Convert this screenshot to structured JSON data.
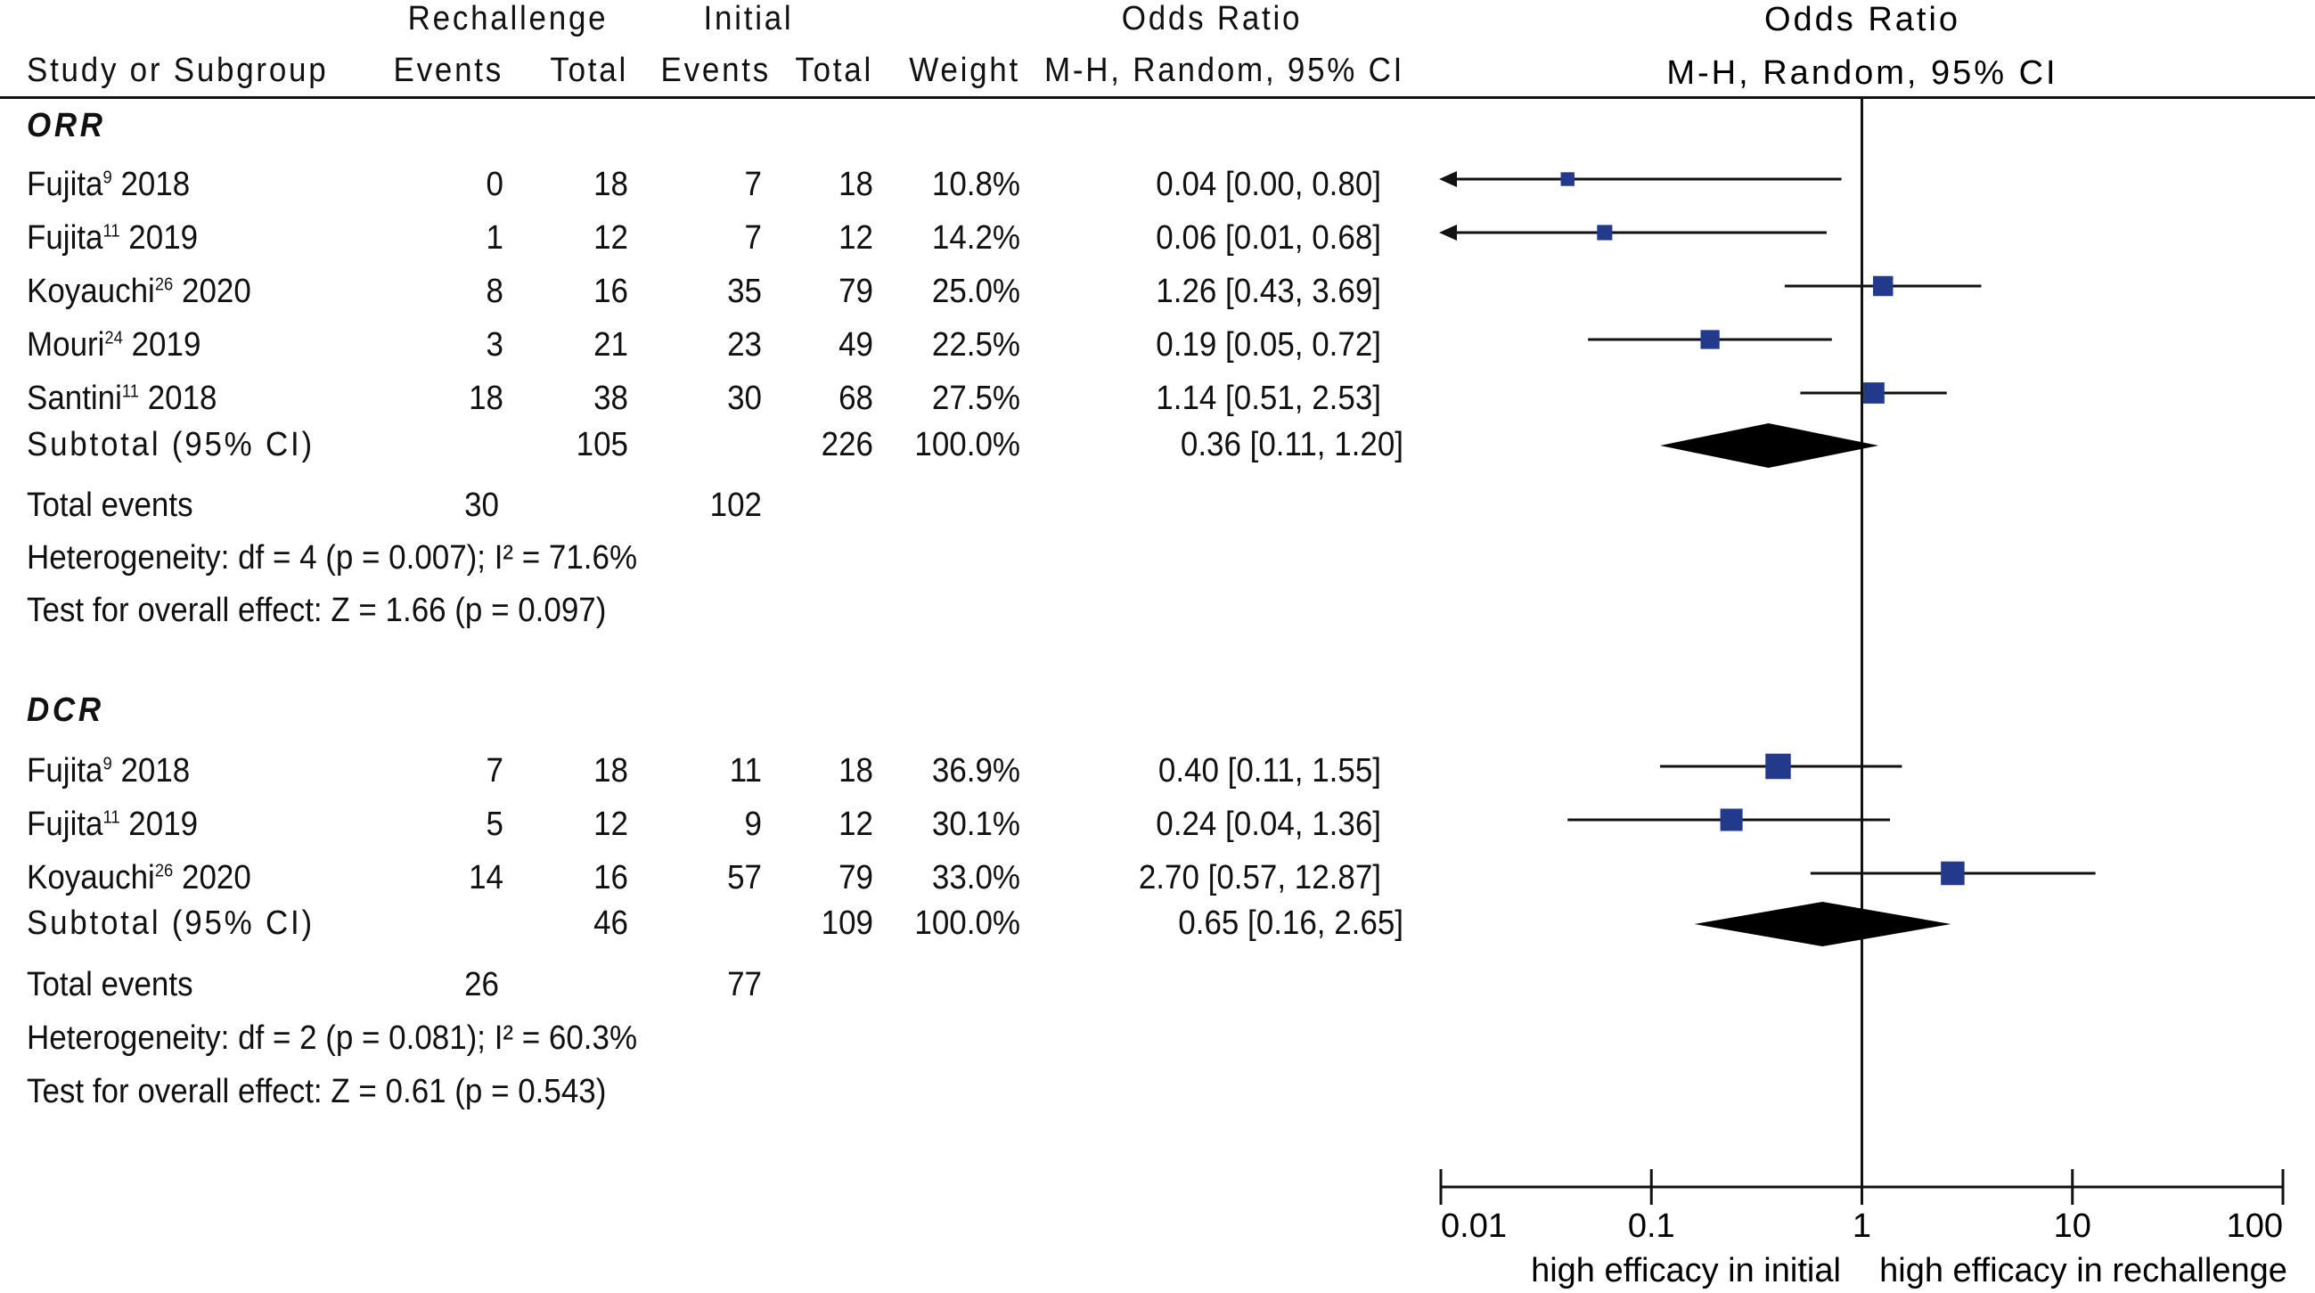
{
  "headers": {
    "rechallenge": "Rechallenge",
    "initial": "Initial",
    "odds_ratio_col": "Odds Ratio",
    "odds_ratio_col_method": "M-H, Random, 95% CI",
    "odds_ratio_plot": "Odds Ratio",
    "odds_ratio_plot_method": "M-H, Random, 95% CI",
    "study": "Study or Subgroup",
    "events1": "Events",
    "total1": "Total",
    "events2": "Events",
    "total2": "Total",
    "weight": "Weight"
  },
  "subgroups": [
    {
      "name": "ORR",
      "studies": [
        {
          "author": "Fujita",
          "ref": "9",
          "year": "2018",
          "e1": "0",
          "t1": "18",
          "e2": "7",
          "t2": "18",
          "weight": "10.8%",
          "ci_text": "0.04 [0.00, 0.80]"
        },
        {
          "author": "Fujita",
          "ref": "11",
          "year": "2019",
          "e1": "1",
          "t1": "12",
          "e2": "7",
          "t2": "12",
          "weight": "14.2%",
          "ci_text": "0.06 [0.01, 0.68]"
        },
        {
          "author": "Koyauchi",
          "ref": "26",
          "year": "2020",
          "e1": "8",
          "t1": "16",
          "e2": "35",
          "t2": "79",
          "weight": "25.0%",
          "ci_text": "1.26 [0.43, 3.69]"
        },
        {
          "author": "Mouri",
          "ref": "24",
          "year": "2019",
          "e1": "3",
          "t1": "21",
          "e2": "23",
          "t2": "49",
          "weight": "22.5%",
          "ci_text": "0.19 [0.05, 0.72]"
        },
        {
          "author": "Santini",
          "ref": "11",
          "year": "2018",
          "e1": "18",
          "t1": "38",
          "e2": "30",
          "t2": "68",
          "weight": "27.5%",
          "ci_text": "1.14 [0.51, 2.53]"
        }
      ],
      "subtotal": {
        "label": "Subtotal (95% CI)",
        "t1": "105",
        "t2": "226",
        "weight": "100.0%",
        "ci_text": "0.36 [0.11, 1.20]"
      },
      "total_events": {
        "label": "Total events",
        "e1": "30",
        "e2": "102"
      },
      "heterogeneity": "Heterogeneity: df = 4 (p = 0.007); I² = 71.6%",
      "overall": "Test for overall effect: Z = 1.66 (p = 0.097)"
    },
    {
      "name": "DCR",
      "studies": [
        {
          "author": "Fujita",
          "ref": "9",
          "year": "2018",
          "e1": "7",
          "t1": "18",
          "e2": "11",
          "t2": "18",
          "weight": "36.9%",
          "ci_text": "0.40 [0.11, 1.55]"
        },
        {
          "author": "Fujita",
          "ref": "11",
          "year": "2019",
          "e1": "5",
          "t1": "12",
          "e2": "9",
          "t2": "12",
          "weight": "30.1%",
          "ci_text": "0.24 [0.04, 1.36]"
        },
        {
          "author": "Koyauchi",
          "ref": "26",
          "year": "2020",
          "e1": "14",
          "t1": "16",
          "e2": "57",
          "t2": "79",
          "weight": "33.0%",
          "ci_text": "2.70 [0.57, 12.87]"
        }
      ],
      "subtotal": {
        "label": "Subtotal (95% CI)",
        "t1": "46",
        "t2": "109",
        "weight": "100.0%",
        "ci_text": "0.65 [0.16, 2.65]"
      },
      "total_events": {
        "label": "Total events",
        "e1": "26",
        "e2": "77"
      },
      "heterogeneity": "Heterogeneity:  df = 2 (p = 0.081); I² = 60.3%",
      "overall": "Test for overall effect: Z = 0.61 (p = 0.543)"
    }
  ],
  "chart_data": {
    "type": "forest",
    "scale": "log",
    "xlim": [
      0.01,
      100
    ],
    "ticks": [
      0.01,
      0.1,
      1,
      10,
      100
    ],
    "tick_labels": [
      "0.01",
      "0.1",
      "1",
      "10",
      "100"
    ],
    "reference_line": 1,
    "left_label": "high efficacy in initial",
    "right_label": "high efficacy in rechallenge",
    "colors": {
      "marker": "#233a8c",
      "line": "#111111",
      "diamond": "#000000"
    },
    "groups": [
      {
        "name": "ORR",
        "studies": [
          {
            "or": 0.04,
            "lo": 0.001,
            "hi": 0.8,
            "weight": 10.8,
            "lo_arrow": true
          },
          {
            "or": 0.06,
            "lo": 0.01,
            "hi": 0.68,
            "weight": 14.2,
            "lo_arrow": true
          },
          {
            "or": 1.26,
            "lo": 0.43,
            "hi": 3.69,
            "weight": 25.0,
            "lo_arrow": false
          },
          {
            "or": 0.19,
            "lo": 0.05,
            "hi": 0.72,
            "weight": 22.5,
            "lo_arrow": false
          },
          {
            "or": 1.14,
            "lo": 0.51,
            "hi": 2.53,
            "weight": 27.5,
            "lo_arrow": false
          }
        ],
        "pooled": {
          "or": 0.36,
          "lo": 0.11,
          "hi": 1.2
        }
      },
      {
        "name": "DCR",
        "studies": [
          {
            "or": 0.4,
            "lo": 0.11,
            "hi": 1.55,
            "weight": 36.9,
            "lo_arrow": false
          },
          {
            "or": 0.24,
            "lo": 0.04,
            "hi": 1.36,
            "weight": 30.1,
            "lo_arrow": false
          },
          {
            "or": 2.7,
            "lo": 0.57,
            "hi": 12.87,
            "weight": 33.0,
            "lo_arrow": false
          }
        ],
        "pooled": {
          "or": 0.65,
          "lo": 0.16,
          "hi": 2.65
        }
      }
    ]
  }
}
